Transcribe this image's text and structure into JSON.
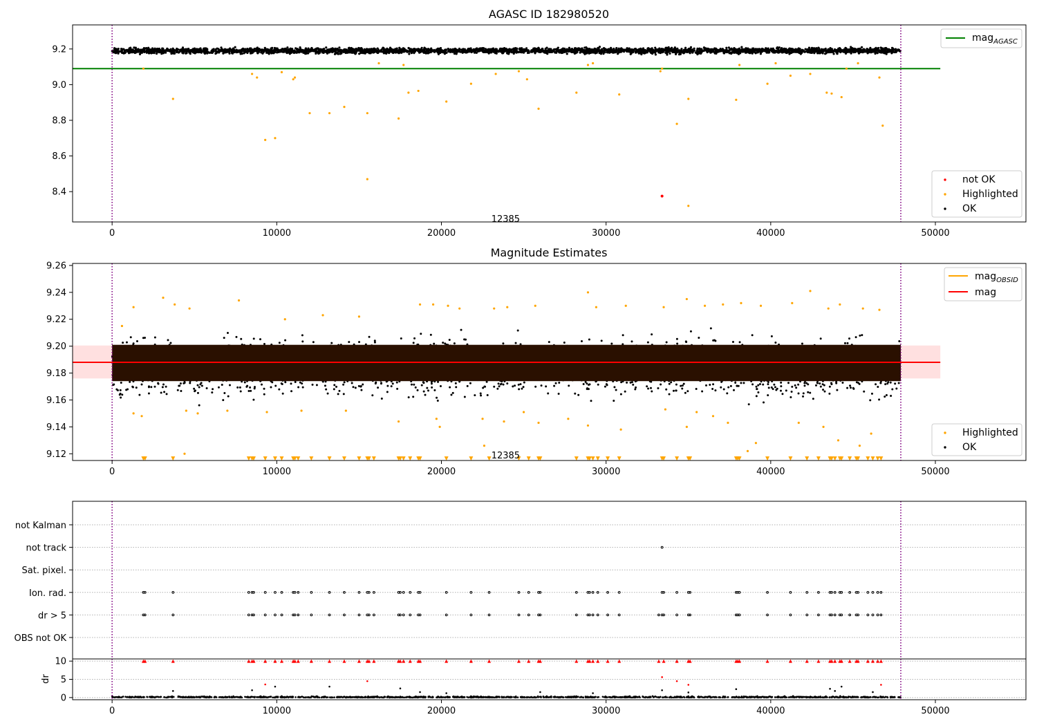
{
  "chart_data": [
    {
      "id": "agasc",
      "type": "scatter",
      "title": "AGASC ID 182980520",
      "xlim": [
        -2400,
        55500
      ],
      "ylim": [
        8.23,
        9.335
      ],
      "xticks": [
        0,
        10000,
        20000,
        30000,
        40000,
        50000
      ],
      "yticks": [
        8.4,
        8.6,
        8.8,
        9.0,
        9.2
      ],
      "vlines": [
        0,
        47900
      ],
      "hlines": [
        {
          "name": "mag_AGASC",
          "y": 9.09,
          "x0": -2400,
          "x1": 50300,
          "color": "#008000"
        }
      ],
      "annotations": [
        {
          "text": "12385",
          "x": 23900,
          "y": 8.245
        }
      ],
      "ok_band": {
        "name": "OK",
        "x0": 0,
        "x1": 47900,
        "y0": 9.165,
        "y1": 9.215,
        "count": 3400,
        "color": "#000000"
      },
      "series": [
        {
          "name": "not OK",
          "color": "#ff0000",
          "points": [
            [
              33400,
              8.375
            ]
          ]
        },
        {
          "name": "Highlighted",
          "color": "#ffa500",
          "points": [
            [
              3700,
              8.92
            ],
            [
              9300,
              8.69
            ],
            [
              9900,
              8.7
            ],
            [
              10300,
              9.07
            ],
            [
              11100,
              9.04
            ],
            [
              12000,
              8.84
            ],
            [
              13200,
              8.84
            ],
            [
              14100,
              8.875
            ],
            [
              15500,
              8.84
            ],
            [
              15500,
              8.47
            ],
            [
              17400,
              8.81
            ],
            [
              18000,
              8.955
            ],
            [
              18600,
              8.965
            ],
            [
              20300,
              8.905
            ],
            [
              21800,
              9.005
            ],
            [
              23300,
              9.06
            ],
            [
              24700,
              9.075
            ],
            [
              25200,
              9.03
            ],
            [
              25900,
              8.865
            ],
            [
              28200,
              8.955
            ],
            [
              29200,
              9.12
            ],
            [
              30800,
              8.945
            ],
            [
              33300,
              9.075
            ],
            [
              33400,
              9.09
            ],
            [
              34300,
              8.78
            ],
            [
              35000,
              8.92
            ],
            [
              35000,
              8.32
            ],
            [
              37900,
              8.915
            ],
            [
              38100,
              9.11
            ],
            [
              39800,
              9.005
            ],
            [
              41200,
              9.05
            ],
            [
              42400,
              9.06
            ],
            [
              43400,
              8.955
            ],
            [
              43700,
              8.95
            ],
            [
              44300,
              8.93
            ],
            [
              44600,
              9.09
            ],
            [
              46600,
              9.04
            ],
            [
              46800,
              8.77
            ],
            [
              1900,
              9.09
            ],
            [
              8500,
              9.06
            ],
            [
              8800,
              9.04
            ],
            [
              11000,
              9.03
            ],
            [
              16200,
              9.12
            ],
            [
              17700,
              9.11
            ],
            [
              28900,
              9.11
            ],
            [
              40300,
              9.12
            ],
            [
              45300,
              9.12
            ]
          ]
        },
        {
          "name": "OK",
          "color": "#000000",
          "points": []
        }
      ],
      "legends": [
        {
          "location": "upper-right",
          "entries": [
            "mag_AGASC"
          ]
        },
        {
          "location": "lower-right",
          "entries": [
            "not OK",
            "Highlighted",
            "OK"
          ]
        }
      ]
    },
    {
      "id": "estimates",
      "type": "scatter",
      "title": "Magnitude Estimates",
      "xlim": [
        -2400,
        55500
      ],
      "ylim": [
        9.115,
        9.2615
      ],
      "xticks": [
        0,
        10000,
        20000,
        30000,
        40000,
        50000
      ],
      "yticks": [
        9.12,
        9.14,
        9.16,
        9.18,
        9.2,
        9.22,
        9.24,
        9.26
      ],
      "vlines": [
        0,
        47900
      ],
      "hlines": [
        {
          "name": "mag",
          "y": 9.188,
          "x0": -2400,
          "x1": 50300,
          "color": "#ff0000"
        }
      ],
      "bands": [
        {
          "y0": 9.176,
          "y1": 9.2005,
          "x0": -2400,
          "x1": 50300,
          "color": "#ffcccc"
        }
      ],
      "annotations": [
        {
          "text": "12385",
          "x": 23900,
          "y": 9.1185
        }
      ],
      "ok_core": {
        "x0": 0,
        "x1": 47900,
        "y0": 9.174,
        "y1": 9.201,
        "color": "#2a1000"
      },
      "ok_spread": {
        "name": "OK",
        "x0": 0,
        "x1": 47900,
        "y0": 9.155,
        "y1": 9.22,
        "count": 2600,
        "color": "#000000"
      },
      "series": [
        {
          "name": "Highlighted",
          "color": "#ffa500",
          "points": [
            [
              600,
              9.215
            ],
            [
              1300,
              9.229
            ],
            [
              3100,
              9.236
            ],
            [
              3800,
              9.231
            ],
            [
              4700,
              9.228
            ],
            [
              7700,
              9.234
            ],
            [
              10500,
              9.22
            ],
            [
              12800,
              9.223
            ],
            [
              15000,
              9.222
            ],
            [
              18700,
              9.231
            ],
            [
              19500,
              9.231
            ],
            [
              20400,
              9.23
            ],
            [
              21100,
              9.228
            ],
            [
              23200,
              9.228
            ],
            [
              24000,
              9.229
            ],
            [
              25700,
              9.23
            ],
            [
              28900,
              9.24
            ],
            [
              29400,
              9.229
            ],
            [
              31200,
              9.23
            ],
            [
              33500,
              9.229
            ],
            [
              34900,
              9.235
            ],
            [
              36000,
              9.23
            ],
            [
              37100,
              9.231
            ],
            [
              38200,
              9.232
            ],
            [
              39400,
              9.23
            ],
            [
              41300,
              9.232
            ],
            [
              42400,
              9.241
            ],
            [
              43500,
              9.228
            ],
            [
              44200,
              9.231
            ],
            [
              45600,
              9.228
            ],
            [
              46600,
              9.227
            ],
            [
              1300,
              9.15
            ],
            [
              1800,
              9.148
            ],
            [
              4500,
              9.152
            ],
            [
              5200,
              9.15
            ],
            [
              7000,
              9.152
            ],
            [
              9400,
              9.151
            ],
            [
              11500,
              9.152
            ],
            [
              14200,
              9.152
            ],
            [
              17400,
              9.144
            ],
            [
              19700,
              9.146
            ],
            [
              19900,
              9.14
            ],
            [
              22500,
              9.146
            ],
            [
              23800,
              9.144
            ],
            [
              25000,
              9.151
            ],
            [
              25900,
              9.143
            ],
            [
              27700,
              9.146
            ],
            [
              28900,
              9.141
            ],
            [
              30900,
              9.138
            ],
            [
              33600,
              9.153
            ],
            [
              34900,
              9.14
            ],
            [
              35500,
              9.151
            ],
            [
              36500,
              9.148
            ],
            [
              37400,
              9.143
            ],
            [
              39100,
              9.128
            ],
            [
              38600,
              9.122
            ],
            [
              41700,
              9.143
            ],
            [
              43200,
              9.14
            ],
            [
              44100,
              9.13
            ],
            [
              45400,
              9.126
            ],
            [
              46100,
              9.135
            ],
            [
              4400,
              9.12
            ],
            [
              22600,
              9.126
            ]
          ]
        },
        {
          "name": "Highlighted-clipped",
          "color": "#ffa500",
          "marker": "triangle-down",
          "y": 9.1165,
          "x": [
            1900,
            2000,
            3700,
            8300,
            8500,
            8600,
            9300,
            9900,
            10300,
            11000,
            11100,
            11300,
            12100,
            13200,
            14100,
            15000,
            15500,
            15600,
            15900,
            17400,
            17500,
            17700,
            18100,
            18600,
            18700,
            20300,
            21800,
            22900,
            24700,
            25300,
            25900,
            26000,
            28200,
            28900,
            29000,
            29200,
            29500,
            30100,
            30800,
            33400,
            33500,
            34300,
            35000,
            35100,
            37900,
            38000,
            38100,
            39800,
            41200,
            42200,
            42900,
            43600,
            43700,
            43900,
            44200,
            44300,
            44800,
            45200,
            45300,
            45900,
            46200,
            46500,
            46700
          ]
        },
        {
          "name": "OK",
          "color": "#000000",
          "points": []
        }
      ],
      "legends": [
        {
          "location": "upper-right",
          "entries": [
            "mag_OBSID",
            "mag"
          ]
        },
        {
          "location": "lower-right",
          "entries": [
            "Highlighted",
            "OK"
          ]
        }
      ]
    },
    {
      "id": "flags",
      "type": "scatter",
      "xlim": [
        -2400,
        55500
      ],
      "categories": [
        "not Kalman",
        "not track",
        "Sat. pixel.",
        "Ion. rad.",
        "dr > 5",
        "OBS not OK"
      ],
      "vlines": [
        0,
        47900
      ],
      "series": [
        {
          "name": "not track",
          "color": "#000000",
          "x": [
            33400
          ]
        },
        {
          "name": "Ion. rad.",
          "color": "#000000",
          "x": [
            1900,
            2000,
            3700,
            8300,
            8500,
            8600,
            9300,
            9900,
            10300,
            11000,
            11100,
            11300,
            12100,
            13200,
            14100,
            15000,
            15500,
            15600,
            15900,
            17400,
            17500,
            17700,
            18100,
            18600,
            18700,
            20300,
            21800,
            22900,
            24700,
            25300,
            25900,
            26000,
            28200,
            28900,
            29000,
            29200,
            29500,
            30100,
            30800,
            33400,
            33500,
            34300,
            35000,
            35100,
            37900,
            38000,
            38100,
            39800,
            41200,
            42200,
            42900,
            43600,
            43700,
            43900,
            44200,
            44300,
            44800,
            45200,
            45300,
            45900,
            46200,
            46500,
            46700
          ]
        },
        {
          "name": "dr > 5",
          "color": "#000000",
          "x": [
            1900,
            2000,
            3700,
            8300,
            8500,
            8600,
            9300,
            9900,
            10300,
            11000,
            11100,
            11300,
            12100,
            13200,
            14100,
            15000,
            15500,
            15600,
            15900,
            17400,
            17500,
            17700,
            18100,
            18600,
            18700,
            20300,
            21800,
            22900,
            24700,
            25300,
            25900,
            26000,
            28200,
            28900,
            29000,
            29200,
            29500,
            30100,
            30800,
            33200,
            33400,
            33500,
            34300,
            35000,
            35100,
            37900,
            38000,
            38100,
            39800,
            41200,
            42200,
            42900,
            43600,
            43700,
            43900,
            44200,
            44300,
            44800,
            45200,
            45300,
            45900,
            46200,
            46500,
            46700
          ]
        }
      ]
    },
    {
      "id": "dr",
      "type": "scatter",
      "ylabel": "dr",
      "xlim": [
        -2400,
        55500
      ],
      "ylim": [
        -0.6,
        10.6
      ],
      "xticks": [
        0,
        10000,
        20000,
        30000,
        40000,
        50000
      ],
      "yticks": [
        0,
        5,
        10
      ],
      "vlines": [
        0,
        47900
      ],
      "clip_y": 10,
      "base": {
        "x0": 0,
        "x1": 47900,
        "y0": 0,
        "y1": 0.5,
        "count": 1400,
        "color": "#000000"
      },
      "series": [
        {
          "name": "dr-clipped",
          "color": "#ff0000",
          "marker": "triangle-up",
          "x": [
            1900,
            2000,
            3700,
            8300,
            8500,
            8600,
            9300,
            9900,
            10300,
            11000,
            11100,
            11300,
            12100,
            13200,
            14100,
            15000,
            15500,
            15600,
            15900,
            17400,
            17500,
            17700,
            18100,
            18600,
            18700,
            20300,
            21800,
            22900,
            24700,
            25300,
            25900,
            26000,
            28200,
            28900,
            29000,
            29200,
            29500,
            30100,
            30800,
            33200,
            33500,
            34300,
            35000,
            35100,
            37900,
            38000,
            38100,
            39800,
            41200,
            42200,
            42900,
            43600,
            43700,
            43900,
            44200,
            44300,
            44800,
            45200,
            45300,
            45900,
            46200,
            46500,
            46700
          ]
        },
        {
          "name": "dr-red",
          "color": "#ff0000",
          "points": [
            [
              9300,
              3.6
            ],
            [
              15500,
              4.5
            ],
            [
              33400,
              5.6
            ],
            [
              34300,
              4.5
            ],
            [
              35000,
              3.5
            ],
            [
              46700,
              3.5
            ]
          ]
        },
        {
          "name": "dr-black",
          "color": "#000000",
          "points": [
            [
              3700,
              1.8
            ],
            [
              8500,
              2.0
            ],
            [
              9900,
              3.0
            ],
            [
              13200,
              3.0
            ],
            [
              17500,
              2.5
            ],
            [
              18700,
              1.5
            ],
            [
              20300,
              1.2
            ],
            [
              26000,
              1.5
            ],
            [
              29200,
              1.2
            ],
            [
              33400,
              2.0
            ],
            [
              35000,
              1.4
            ],
            [
              37900,
              2.3
            ],
            [
              43600,
              2.4
            ],
            [
              43900,
              1.8
            ],
            [
              44300,
              3.0
            ],
            [
              46200,
              1.5
            ]
          ]
        }
      ]
    }
  ],
  "legend_labels": {
    "mag_agasc": {
      "main": "mag",
      "sub": "AGASC"
    },
    "mag_obsid": {
      "main": "mag",
      "sub": "OBSID"
    },
    "mag": "mag",
    "not_ok": "not OK",
    "highlighted": "Highlighted",
    "ok": "OK"
  },
  "colors": {
    "ok": "#000000",
    "highlighted": "#ffa500",
    "not_ok": "#ff0000",
    "agasc": "#008000",
    "obsid": "#ffa500",
    "mag": "#ff0000",
    "vline": "#800080"
  }
}
